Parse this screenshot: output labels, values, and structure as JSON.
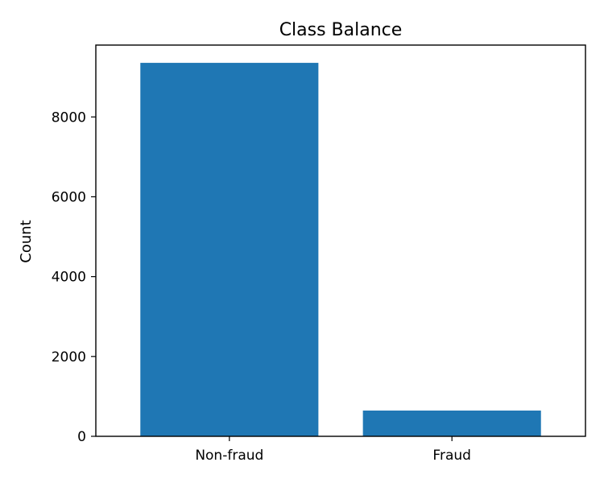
{
  "chart_data": {
    "type": "bar",
    "title": "Class Balance",
    "xlabel": "",
    "ylabel": "Count",
    "categories": [
      "Non-fraud",
      "Fraud"
    ],
    "values": [
      9355,
      645
    ],
    "ylim": [
      0,
      9800
    ],
    "yticks": [
      0,
      2000,
      4000,
      6000,
      8000
    ],
    "ytick_labels": [
      "0",
      "2000",
      "4000",
      "6000",
      "8000"
    ],
    "bar_color": "#1f77b4",
    "grid": false,
    "legend": "none"
  }
}
